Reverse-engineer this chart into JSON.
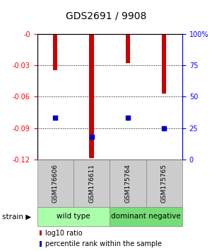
{
  "title": "GDS2691 / 9908",
  "samples": [
    "GSM176606",
    "GSM176611",
    "GSM175764",
    "GSM175765"
  ],
  "log10_ratio": [
    -0.035,
    -0.119,
    -0.028,
    -0.057
  ],
  "percentile_rank": [
    33,
    18,
    33,
    25
  ],
  "groups": [
    {
      "label": "wild type",
      "samples": [
        0,
        1
      ],
      "color": "#99ee99"
    },
    {
      "label": "dominant negative",
      "samples": [
        2,
        3
      ],
      "color": "#66cc66"
    }
  ],
  "ylim_left": [
    -0.12,
    0
  ],
  "ylim_right": [
    0,
    100
  ],
  "yticks_left": [
    0,
    -0.03,
    -0.06,
    -0.09,
    -0.12
  ],
  "yticks_right": [
    0,
    25,
    50,
    75,
    100
  ],
  "bar_color": "#cc0000",
  "dot_color": "#0000cc",
  "bar_width": 0.12,
  "dot_size": 18,
  "title_fontsize": 10,
  "tick_fontsize": 7,
  "sample_fontsize": 6.5,
  "group_fontsize": 7.5,
  "legend_fontsize": 7,
  "sample_box_color": "#cccccc",
  "grid_color": "#000000",
  "group1_color": "#aaffaa",
  "group2_color": "#77dd77"
}
